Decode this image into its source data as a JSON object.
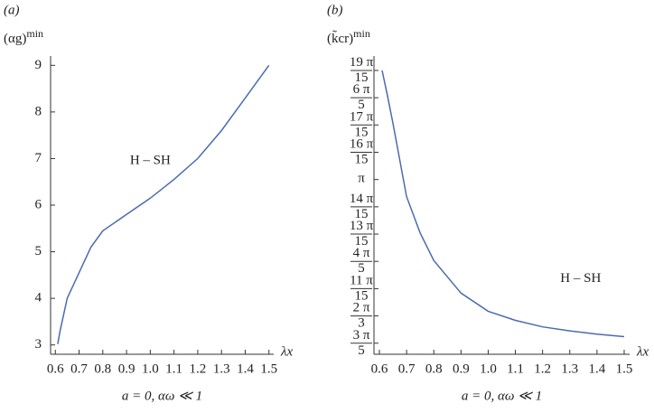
{
  "chart_data": [
    {
      "type": "line",
      "panel_label": "(a)",
      "y_label": "(αg)",
      "y_label_superscript": "min",
      "x_label": "λx",
      "x_note": "a = 0, αω ≪ 1",
      "annotation": "H – SH",
      "x": [
        0.61,
        0.62,
        0.65,
        0.7,
        0.75,
        0.8,
        0.9,
        1.0,
        1.1,
        1.2,
        1.3,
        1.4,
        1.5
      ],
      "series": [
        {
          "name": "H – SH",
          "color": "#4a6bb0",
          "values": [
            3.02,
            3.3,
            4.0,
            4.55,
            5.1,
            5.45,
            5.8,
            6.15,
            6.55,
            7.0,
            7.6,
            8.3,
            9.0
          ]
        }
      ],
      "xlim": [
        0.58,
        1.52
      ],
      "ylim": [
        2.8,
        9.2
      ],
      "xticks": [
        0.6,
        0.7,
        0.8,
        0.9,
        {
          "value": 1,
          "label": "1.0"
        },
        1.1,
        1.2,
        1.3,
        1.4,
        1.5
      ],
      "yticks": [
        3,
        4,
        5,
        6,
        7,
        8,
        9
      ]
    },
    {
      "type": "line",
      "panel_label": "(b)",
      "y_label": "(k̃cr)",
      "y_label_superscript": "min",
      "x_label": "λx",
      "x_note": "a = 0, αω ≪ 1",
      "annotation": "H – SH",
      "x": [
        0.61,
        0.63,
        0.65,
        0.7,
        0.75,
        0.8,
        0.9,
        1.0,
        1.1,
        1.2,
        1.3,
        1.4,
        1.5
      ],
      "series": [
        {
          "name": "H – SH",
          "color": "#4a6bb0",
          "values": [
            3.98,
            3.78,
            3.57,
            3.01,
            2.73,
            2.52,
            2.27,
            2.13,
            2.06,
            2.01,
            1.98,
            1.955,
            1.935
          ]
        }
      ],
      "xlim": [
        0.58,
        1.52
      ],
      "ylim": [
        1.8,
        4.09
      ],
      "xticks": [
        0.6,
        0.7,
        0.8,
        0.9,
        {
          "value": 1,
          "label": "1.0"
        },
        1.1,
        1.2,
        1.3,
        1.4,
        1.5
      ],
      "yticks": [
        {
          "value": 1.88496,
          "label": "3 π/5"
        },
        {
          "value": 2.0944,
          "label": "2 π/3"
        },
        {
          "value": 2.30383,
          "label": "11 π/15"
        },
        {
          "value": 2.51327,
          "label": "4 π/5"
        },
        {
          "value": 2.72271,
          "label": "13 π/15"
        },
        {
          "value": 2.93215,
          "label": "14 π/15"
        },
        {
          "value": 3.14159,
          "label": "π"
        },
        {
          "value": 3.35103,
          "label": "16 π/15"
        },
        {
          "value": 3.56047,
          "label": "17 π/15"
        },
        {
          "value": 3.76991,
          "label": "6 π/5"
        },
        {
          "value": 3.97935,
          "label": "19 π/15"
        }
      ]
    }
  ]
}
